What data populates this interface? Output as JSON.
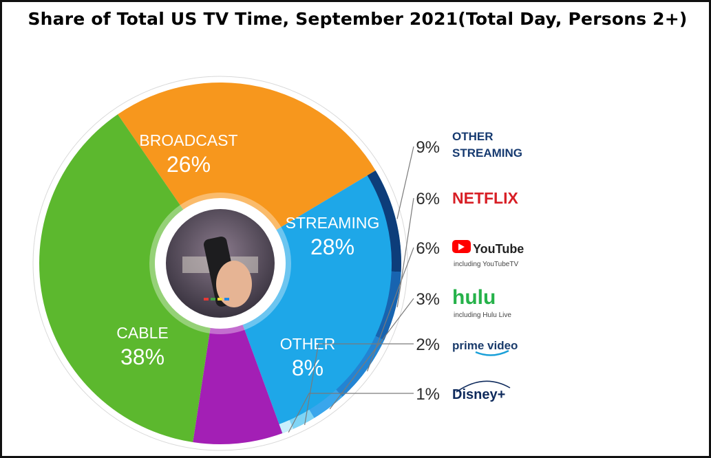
{
  "chart_data": {
    "type": "pie",
    "title": "Share of Total US TV Time, September 2021(Total Day, Persons 2+)",
    "categories": [
      "BROADCAST",
      "STREAMING",
      "OTHER",
      "CABLE"
    ],
    "values": [
      26,
      28,
      8,
      38
    ],
    "value_labels": [
      "26%",
      "28%",
      "8%",
      "38%"
    ],
    "colors": [
      "#f7971d",
      "#1ea7e8",
      "#a31fb5",
      "#5cb82e"
    ],
    "streaming_breakdown": {
      "categories": [
        "OTHER STREAMING",
        "NETFLIX",
        "YouTube",
        "hulu",
        "prime video",
        "Disney+"
      ],
      "values": [
        9,
        6,
        6,
        3,
        2,
        1
      ],
      "value_labels": [
        "9%",
        "6%",
        "6%",
        "3%",
        "2%",
        "1%"
      ],
      "sublabels": [
        "",
        "",
        "including YouTubeTV",
        "including Hulu Live",
        "",
        ""
      ],
      "colors": [
        "#0d3d7a",
        "#1864b0",
        "#2384d3",
        "#3aa6ec",
        "#7fd4f5",
        "#c8effc"
      ]
    }
  }
}
